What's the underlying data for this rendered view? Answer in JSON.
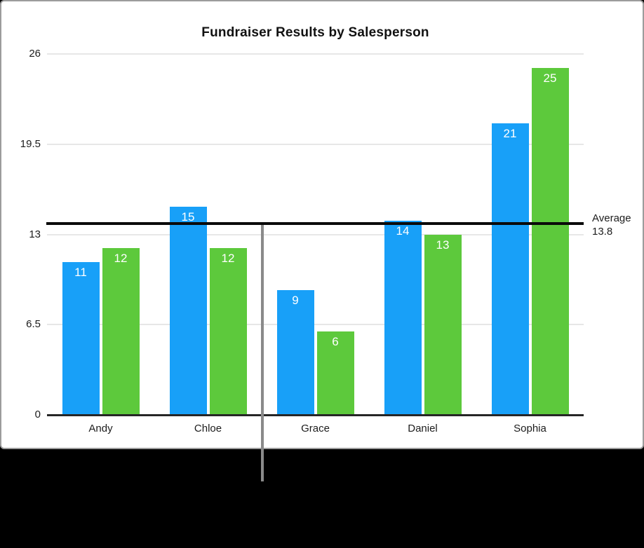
{
  "figure": {
    "panel_border_color": "#9C9C9C",
    "background_color": "#000000",
    "panel_color": "#FFFFFF"
  },
  "chart_data": {
    "type": "bar",
    "title": "Fundraiser Results by Salesperson",
    "categories": [
      "Andy",
      "Chloe",
      "Grace",
      "Daniel",
      "Sophia"
    ],
    "series": [
      {
        "name": "series-1-blue",
        "color": "#18A0F8",
        "values": [
          11,
          15,
          9,
          14,
          21
        ]
      },
      {
        "name": "series-2-green",
        "color": "#5DC93C",
        "values": [
          12,
          12,
          6,
          13,
          25
        ]
      }
    ],
    "xlabel": "",
    "ylabel": "",
    "ylim": [
      0,
      26
    ],
    "yticks": [
      0,
      6.5,
      13,
      19.5,
      26
    ],
    "grid": true,
    "value_labels": true,
    "legend": "none",
    "average_line": {
      "label": "Average",
      "value_text": "13.8",
      "value": 13.8,
      "color": "#0A0A0A"
    }
  },
  "annotation": {
    "callout_line_color": "#8A8A8A",
    "grid_color": "#E7E7E7",
    "axis_color": "#262626"
  }
}
